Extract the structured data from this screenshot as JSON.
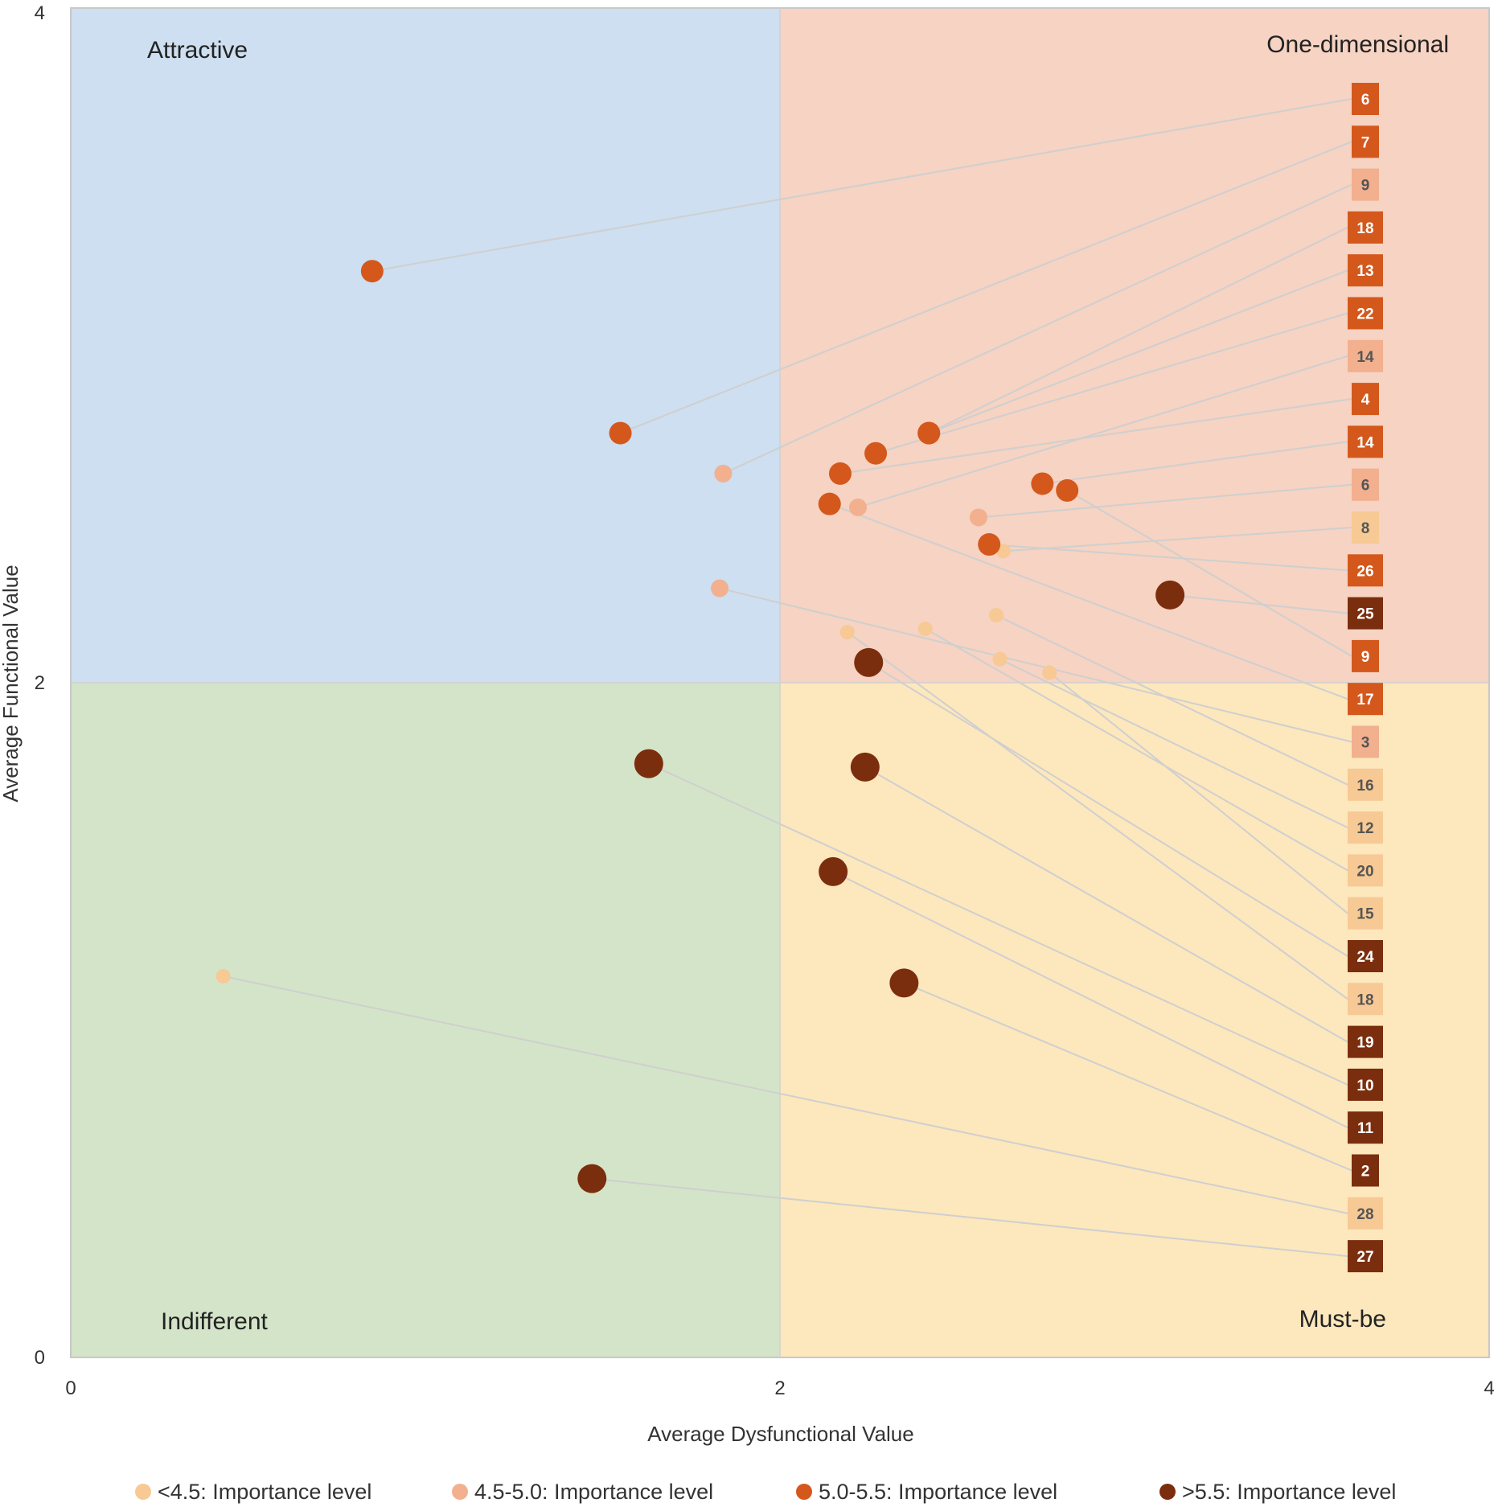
{
  "chart_data": {
    "type": "scatter",
    "xlabel": "Average Dysfunctional Value",
    "ylabel": "Average Functional Value",
    "xlim": [
      0,
      4
    ],
    "ylim": [
      0,
      4
    ],
    "xticks": [
      "0",
      "2",
      "4"
    ],
    "yticks": [
      "0",
      "2",
      "4"
    ],
    "quadrants": [
      {
        "name": "Attractive",
        "x_range": [
          0,
          2
        ],
        "y_range": [
          2,
          4
        ],
        "color": "#cddff0",
        "label_pos": "top-left"
      },
      {
        "name": "One-dimensional",
        "x_range": [
          2,
          4
        ],
        "y_range": [
          2,
          4
        ],
        "color": "#f6d3c2",
        "label_pos": "top-right"
      },
      {
        "name": "Indifferent",
        "x_range": [
          0,
          2
        ],
        "y_range": [
          0,
          2
        ],
        "color": "#d4e4c8",
        "label_pos": "bottom-left"
      },
      {
        "name": "Must-be",
        "x_range": [
          2,
          4
        ],
        "y_range": [
          0,
          2
        ],
        "color": "#fde7bd",
        "label_pos": "bottom-right"
      }
    ],
    "categories": [
      {
        "key": "c1",
        "name": "<4.5: Importance level",
        "color": "#f7c994",
        "text_color": "#555555"
      },
      {
        "key": "c2",
        "name": "4.5-5.0: Importance level",
        "color": "#f2b08e",
        "text_color": "#555555"
      },
      {
        "key": "c3",
        "name": "5.0-5.5: Importance level",
        "color": "#d4581c",
        "text_color": "#ffffff"
      },
      {
        "key": "c4",
        "name": ">5.5: Importance level",
        "color": "#7b2e0e",
        "text_color": "#ffffff"
      }
    ],
    "points": [
      {
        "label": "6",
        "x": 0.85,
        "y": 3.22,
        "cat": "c3"
      },
      {
        "label": "7",
        "x": 1.55,
        "y": 2.74,
        "cat": "c3"
      },
      {
        "label": "9",
        "x": 1.84,
        "y": 2.62,
        "cat": "c2"
      },
      {
        "label": "18",
        "x": 2.42,
        "y": 2.74,
        "cat": "c3"
      },
      {
        "label": "13",
        "x": 2.42,
        "y": 2.74,
        "cat": "c3"
      },
      {
        "label": "22",
        "x": 2.27,
        "y": 2.68,
        "cat": "c3"
      },
      {
        "label": "14",
        "x": 2.22,
        "y": 2.52,
        "cat": "c2"
      },
      {
        "label": "4",
        "x": 2.17,
        "y": 2.62,
        "cat": "c3"
      },
      {
        "label": "14",
        "x": 2.74,
        "y": 2.59,
        "cat": "c3"
      },
      {
        "label": "6",
        "x": 2.56,
        "y": 2.49,
        "cat": "c2"
      },
      {
        "label": "8",
        "x": 2.63,
        "y": 2.39,
        "cat": "c1"
      },
      {
        "label": "26",
        "x": 2.59,
        "y": 2.41,
        "cat": "c3"
      },
      {
        "label": "25",
        "x": 3.1,
        "y": 2.26,
        "cat": "c4"
      },
      {
        "label": "9",
        "x": 2.81,
        "y": 2.57,
        "cat": "c3"
      },
      {
        "label": "17",
        "x": 2.14,
        "y": 2.53,
        "cat": "c3"
      },
      {
        "label": "3",
        "x": 1.83,
        "y": 2.28,
        "cat": "c2"
      },
      {
        "label": "16",
        "x": 2.61,
        "y": 2.2,
        "cat": "c1"
      },
      {
        "label": "12",
        "x": 2.62,
        "y": 2.07,
        "cat": "c1"
      },
      {
        "label": "20",
        "x": 2.41,
        "y": 2.16,
        "cat": "c1"
      },
      {
        "label": "15",
        "x": 2.76,
        "y": 2.03,
        "cat": "c1"
      },
      {
        "label": "24",
        "x": 2.25,
        "y": 2.06,
        "cat": "c4"
      },
      {
        "label": "18",
        "x": 2.19,
        "y": 2.15,
        "cat": "c1"
      },
      {
        "label": "19",
        "x": 2.24,
        "y": 1.75,
        "cat": "c4"
      },
      {
        "label": "10",
        "x": 1.63,
        "y": 1.76,
        "cat": "c4"
      },
      {
        "label": "11",
        "x": 2.15,
        "y": 1.44,
        "cat": "c4"
      },
      {
        "label": "2",
        "x": 2.35,
        "y": 1.11,
        "cat": "c4"
      },
      {
        "label": "28",
        "x": 0.43,
        "y": 1.13,
        "cat": "c1"
      },
      {
        "label": "27",
        "x": 1.47,
        "y": 0.53,
        "cat": "c4"
      }
    ]
  }
}
